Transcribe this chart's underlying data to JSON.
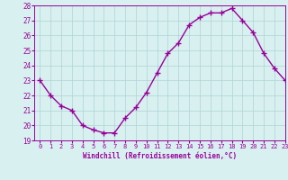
{
  "x": [
    0,
    1,
    2,
    3,
    4,
    5,
    6,
    7,
    8,
    9,
    10,
    11,
    12,
    13,
    14,
    15,
    16,
    17,
    18,
    19,
    20,
    21,
    22,
    23
  ],
  "y": [
    23.0,
    22.0,
    21.3,
    21.0,
    20.0,
    19.7,
    19.5,
    19.5,
    20.5,
    21.2,
    22.2,
    23.5,
    24.8,
    25.5,
    26.7,
    27.2,
    27.5,
    27.5,
    27.8,
    27.0,
    26.2,
    24.8,
    23.8,
    23.0
  ],
  "line_color": "#990099",
  "marker": "+",
  "marker_color": "#990099",
  "bg_color": "#d8f0f0",
  "grid_color": "#aed4d4",
  "xlabel": "Windchill (Refroidissement éolien,°C)",
  "xlabel_color": "#990099",
  "tick_color": "#990099",
  "ylim": [
    19,
    28
  ],
  "xlim": [
    -0.5,
    23
  ],
  "yticks": [
    19,
    20,
    21,
    22,
    23,
    24,
    25,
    26,
    27,
    28
  ],
  "xticks": [
    0,
    1,
    2,
    3,
    4,
    5,
    6,
    7,
    8,
    9,
    10,
    11,
    12,
    13,
    14,
    15,
    16,
    17,
    18,
    19,
    20,
    21,
    22,
    23
  ],
  "linewidth": 1.0,
  "markersize": 4
}
